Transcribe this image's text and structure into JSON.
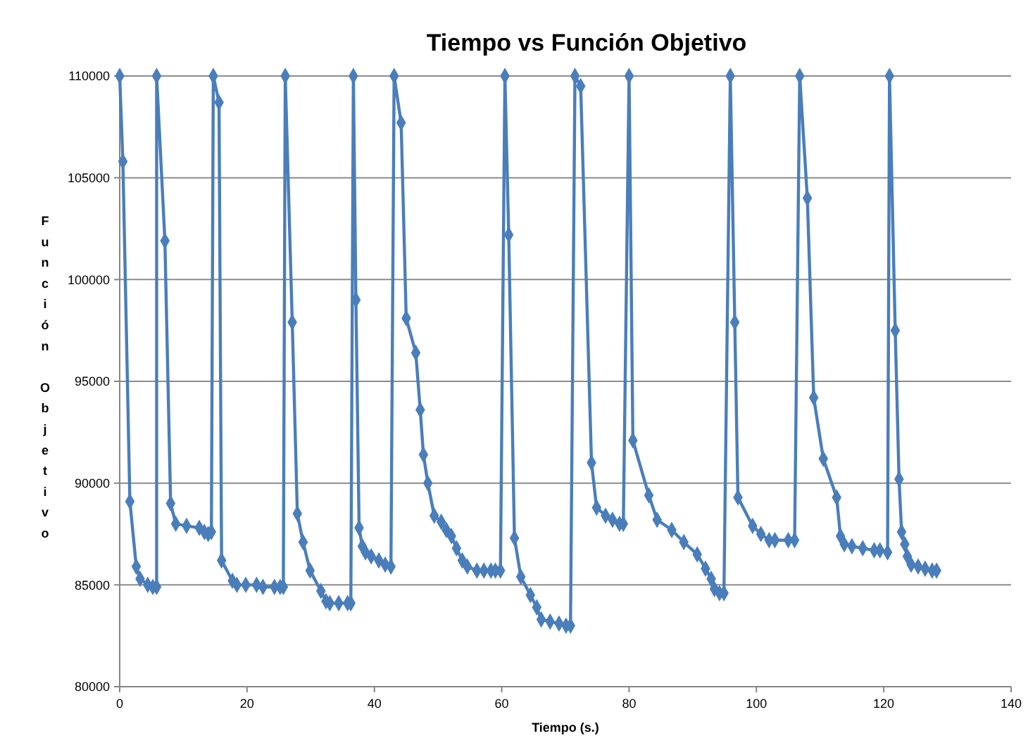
{
  "chart_data": {
    "type": "line",
    "title": "Tiempo vs Función Objetivo",
    "xlabel": "Tiempo (s.)",
    "ylabel": "Función Objetivo",
    "xlim": [
      0,
      140
    ],
    "xticks": [
      0,
      20,
      40,
      60,
      80,
      100,
      120,
      140
    ],
    "ylim": [
      80000,
      110000
    ],
    "yticks": [
      80000,
      85000,
      90000,
      95000,
      100000,
      105000,
      110000
    ],
    "grid": "y",
    "marker": "diamond",
    "line_style": "solid",
    "series": [
      {
        "color": "#4a7ebb",
        "x": [
          0,
          0.5,
          1.6,
          2.6,
          3.2,
          4.4,
          5.2,
          5.8,
          5.8,
          7.1,
          8.0,
          8.8,
          10.5,
          12.5,
          13.3,
          13.9,
          14.4,
          14.7,
          15.6,
          16.0,
          17.7,
          18.4,
          19.8,
          21.5,
          22.5,
          24.3,
          25.2,
          25.7,
          26.0,
          27.1,
          27.9,
          28.8,
          29.9,
          31.6,
          32.4,
          33.0,
          34.4,
          35.8,
          36.3,
          36.7,
          37.1,
          37.6,
          38.1,
          38.6,
          39.5,
          40.7,
          41.7,
          42.6,
          43.1,
          44.2,
          45.0,
          46.5,
          47.2,
          47.7,
          48.4,
          49.4,
          50.5,
          51.3,
          52.1,
          52.9,
          53.8,
          54.6,
          56.1,
          57.2,
          58.3,
          59.0,
          59.8,
          60.5,
          61.1,
          62.0,
          63.0,
          64.5,
          65.5,
          66.2,
          67.6,
          69.0,
          70.1,
          70.8,
          71.5,
          72.4,
          74.1,
          74.9,
          76.3,
          77.4,
          78.5,
          79.1,
          80.0,
          80.6,
          83.1,
          84.4,
          86.7,
          88.6,
          90.7,
          92.0,
          92.9,
          93.4,
          94.2,
          94.9,
          95.9,
          96.6,
          97.1,
          99.4,
          100.7,
          102.0,
          102.9,
          105.0,
          106.0,
          106.8,
          108.0,
          109.0,
          110.5,
          112.6,
          113.2,
          113.8,
          115.0,
          116.7,
          118.5,
          119.4,
          120.6,
          120.9,
          121.8,
          122.4,
          122.8,
          123.3,
          123.7,
          124.3,
          125.4,
          126.5,
          127.6,
          128.3
        ],
        "values": [
          110000,
          105800,
          89100,
          85900,
          85300,
          85000,
          84900,
          84900,
          110000,
          101900,
          89000,
          88000,
          87900,
          87800,
          87600,
          87500,
          87600,
          110000,
          108700,
          86200,
          85200,
          85000,
          85000,
          85000,
          84900,
          84900,
          84900,
          84900,
          110000,
          97900,
          88500,
          87100,
          85700,
          84700,
          84200,
          84100,
          84100,
          84100,
          84100,
          110000,
          99000,
          87800,
          86900,
          86600,
          86400,
          86200,
          86000,
          85900,
          110000,
          107700,
          98100,
          96400,
          93600,
          91400,
          90000,
          88400,
          88100,
          87700,
          87400,
          86800,
          86200,
          85900,
          85700,
          85700,
          85700,
          85700,
          85700,
          110000,
          102200,
          87300,
          85400,
          84500,
          83900,
          83300,
          83200,
          83100,
          83000,
          83000,
          110000,
          109500,
          91000,
          88800,
          88400,
          88200,
          88000,
          88000,
          110000,
          92100,
          89400,
          88200,
          87700,
          87100,
          86500,
          85800,
          85300,
          84800,
          84600,
          84600,
          110000,
          97900,
          89300,
          87900,
          87500,
          87200,
          87200,
          87200,
          87200,
          110000,
          104000,
          94200,
          91200,
          89300,
          87400,
          87000,
          86900,
          86800,
          86700,
          86700,
          86600,
          110000,
          97500,
          90200,
          87600,
          87000,
          86400,
          86000,
          85900,
          85800,
          85700,
          85700
        ]
      }
    ]
  }
}
